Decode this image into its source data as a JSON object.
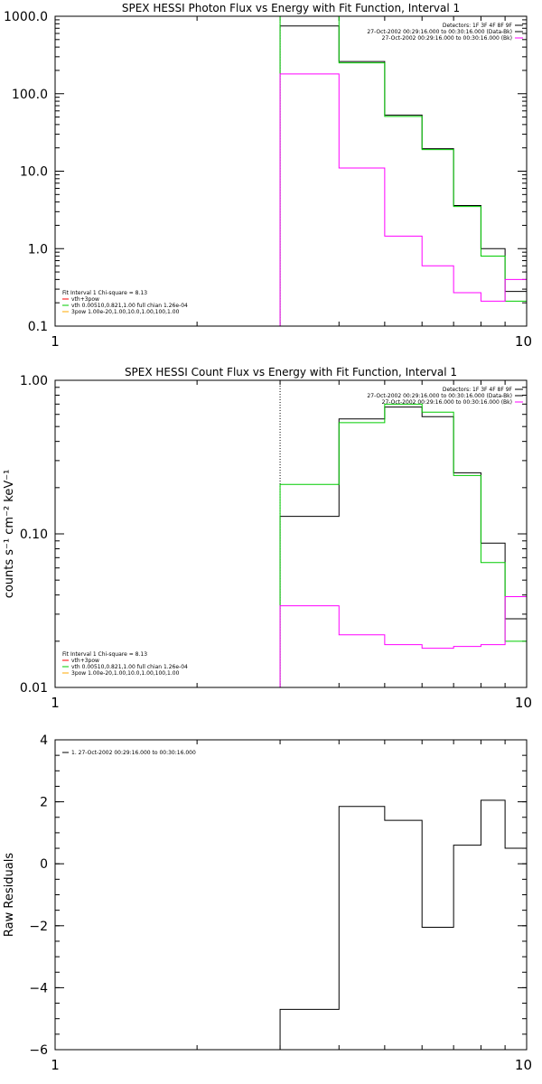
{
  "chart_data": [
    {
      "type": "line",
      "title": "SPEX HESSI Photon Flux vs Energy with Fit Function, Interval 1",
      "xlabel": "",
      "ylabel": "",
      "xscale": "log",
      "yscale": "log",
      "xlim": [
        1,
        10
      ],
      "ylim": [
        0.1,
        1000
      ],
      "xticks": [
        {
          "v": 1,
          "label": "1"
        },
        {
          "v": 10,
          "label": "10"
        }
      ],
      "yticks": [
        {
          "v": 0.1,
          "label": "0.1"
        },
        {
          "v": 1,
          "label": "1.0"
        },
        {
          "v": 10,
          "label": "10.0"
        },
        {
          "v": 100,
          "label": "100.0"
        },
        {
          "v": 1000,
          "label": "1000.0"
        }
      ],
      "vline_x": 3.0,
      "vline_style": "dotted",
      "grid": false,
      "info_lines": [
        "Detectors: 1F 3F 4F 8F 9F",
        "27-Oct-2002 00:29:16.000 to 00:30:16.000 (Data-Bk)",
        "27-Oct-2002 00:29:16.000 to 00:30:16.000 (Bk)"
      ],
      "info_colors": [
        "#000000",
        "#000000",
        "#ff00ff"
      ],
      "legend_placement": "bottom-left",
      "legend": [
        {
          "text": "Fit Interval 1    Chi-square = 8.13",
          "color": "#000000",
          "line": false
        },
        {
          "text": "vth+3pow",
          "color": "#ff0000",
          "line": true
        },
        {
          "text": "vth 0.00510,0.821,1.00  full chian 1.26e-04",
          "color": "#00cc00",
          "line": true
        },
        {
          "text": "3pow 1.00e-20,1.00,10.0,1.00,100,1.00",
          "color": "#ffaa00",
          "line": true
        }
      ],
      "edges": [
        3.0,
        4.0,
        5.0,
        6.0,
        7.0,
        8.0,
        9.0,
        10.0
      ],
      "series": [
        {
          "color": "#000000",
          "values": [
            750,
            260,
            53,
            19.5,
            3.6,
            1.0,
            0.28
          ]
        },
        {
          "color": "#00cc00",
          "values": [
            1100,
            250,
            51,
            19,
            3.5,
            0.8,
            0.21
          ]
        },
        {
          "color": "#ff00ff",
          "values": [
            180,
            11,
            1.45,
            0.6,
            0.27,
            0.21,
            0.4
          ]
        }
      ]
    },
    {
      "type": "line",
      "title": "SPEX HESSI Count Flux vs Energy with Fit Function, Interval 1",
      "xlabel": "",
      "ylabel": "counts s⁻¹ cm⁻² keV⁻¹",
      "xscale": "log",
      "yscale": "log",
      "xlim": [
        1,
        10
      ],
      "ylim": [
        0.01,
        1.0
      ],
      "xticks": [
        {
          "v": 1,
          "label": "1"
        },
        {
          "v": 10,
          "label": "10"
        }
      ],
      "yticks": [
        {
          "v": 0.01,
          "label": "0.01"
        },
        {
          "v": 0.1,
          "label": "0.10"
        },
        {
          "v": 1,
          "label": "1.00"
        }
      ],
      "vline_x": 3.0,
      "vline_style": "dotted",
      "grid": false,
      "info_lines": [
        "Detectors: 1F 3F 4F 8F 9F",
        "27-Oct-2002 00:29:16.000 to 00:30:16.000 (Data-Bk)",
        "27-Oct-2002 00:29:16.000 to 00:30:16.000 (Bk)"
      ],
      "info_colors": [
        "#000000",
        "#000000",
        "#ff00ff"
      ],
      "legend_placement": "bottom-left",
      "legend": [
        {
          "text": "Fit Interval 1    Chi-square = 8.13",
          "color": "#000000",
          "line": false
        },
        {
          "text": "vth+3pow",
          "color": "#ff0000",
          "line": true
        },
        {
          "text": "vth 0.00510,0.821,1.00  full chian 1.26e-04",
          "color": "#00cc00",
          "line": true
        },
        {
          "text": "3pow 1.00e-20,1.00,10.0,1.00,100,1.00",
          "color": "#ffaa00",
          "line": true
        }
      ],
      "edges": [
        3.0,
        4.0,
        5.0,
        6.0,
        7.0,
        8.0,
        9.0,
        10.0
      ],
      "series": [
        {
          "color": "#000000",
          "values": [
            0.13,
            0.56,
            0.67,
            0.58,
            0.25,
            0.087,
            0.028
          ]
        },
        {
          "color": "#00cc00",
          "values": [
            0.21,
            0.53,
            0.7,
            0.62,
            0.24,
            0.065,
            0.02
          ]
        },
        {
          "color": "#ff00ff",
          "values": [
            0.034,
            0.022,
            0.019,
            0.018,
            0.0185,
            0.019,
            0.039
          ]
        }
      ]
    },
    {
      "type": "line",
      "title": "",
      "xlabel": "",
      "ylabel": "Raw Residuals",
      "xscale": "log",
      "yscale": "linear",
      "xlim": [
        1,
        10
      ],
      "ylim": [
        -6,
        4
      ],
      "xticks": [
        {
          "v": 1,
          "label": "1"
        },
        {
          "v": 10,
          "label": "10"
        }
      ],
      "yticks": [
        {
          "v": -6,
          "label": "−6"
        },
        {
          "v": -4,
          "label": "−4"
        },
        {
          "v": -2,
          "label": "−2"
        },
        {
          "v": 0,
          "label": "0"
        },
        {
          "v": 2,
          "label": "2"
        },
        {
          "v": 4,
          "label": "4"
        }
      ],
      "grid": false,
      "legend_placement": "top-left",
      "legend": [
        {
          "text": "1. 27-Oct-2002 00:29:16.000 to 00:30:16.000",
          "color": "#000000",
          "line": true
        }
      ],
      "edges": [
        3.0,
        4.0,
        5.0,
        6.0,
        7.0,
        8.0,
        9.0,
        10.0
      ],
      "series": [
        {
          "color": "#000000",
          "values": [
            -4.7,
            1.85,
            1.4,
            -2.05,
            0.6,
            2.05,
            0.5
          ]
        }
      ]
    }
  ]
}
